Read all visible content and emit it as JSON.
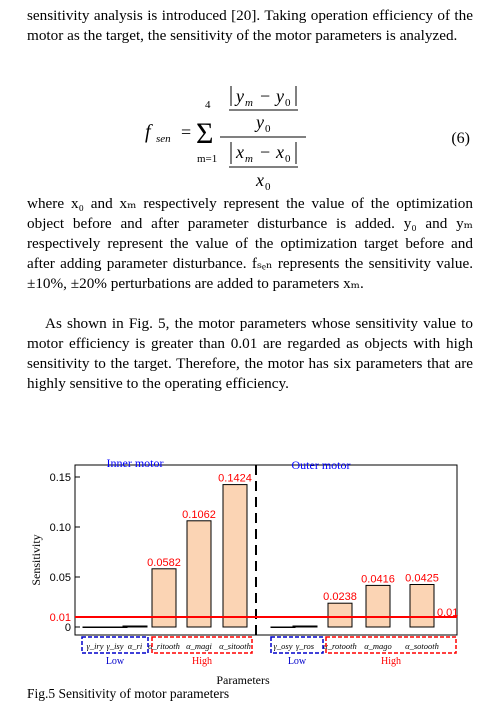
{
  "paragraphs": {
    "p1": "sensitivity analysis is introduced [20]. Taking operation efficiency of the motor as the target, the sensitivity of the motor parameters is analyzed.",
    "p2": "where x₀ and xₘ respectively represent the value of the optimization object before and after parameter disturbance is added. y₀ and yₘ respectively represent the value of the optimization target before and after adding parameter disturbance. fₛₑₙ represents the sensitivity value. ±10%, ±20% perturbations are added to parameters xₘ.",
    "p3": "As shown in Fig. 5, the motor parameters whose sensitivity value to motor efficiency is greater than 0.01 are regarded as objects with high sensitivity to the target. Therefore, the motor has six parameters that are highly sensitive to the operating efficiency."
  },
  "equation": {
    "lhs": "f",
    "lhs_sub": "sen",
    "sum_upper": "4",
    "sum_lower": "m=1",
    "num_top": "y",
    "num_top_sub": "m",
    "y0": "y",
    "x0": "x",
    "sub0": "0",
    "subm": "m",
    "number": "(6)"
  },
  "figure": {
    "caption": "Fig.5 Sensitivity of motor parameters",
    "inner_label": "Inner motor",
    "outer_label": "Outer motor",
    "low_label": "Low",
    "high_label": "High",
    "threshold_label": "0.01"
  },
  "chart_data": {
    "type": "bar",
    "ylabel": "Sensitivity",
    "xlabel": "Parameters",
    "ylim": [
      0,
      0.155
    ],
    "yticks": [
      "0",
      "0.01",
      "0.05",
      "0.10",
      "0.15"
    ],
    "threshold": 0.01,
    "categories": [
      "γ_iry",
      "γ_isy",
      "α_ri",
      "α_ritooth",
      "α_magi",
      "α_sitooth",
      "γ_osy",
      "γ_ros",
      "α_rotooth",
      "α_mago",
      "α_sotooth"
    ],
    "values": [
      0,
      0,
      0.001,
      0.0582,
      0.1062,
      0.1424,
      0,
      0.001,
      0.0238,
      0.0416,
      0.0425
    ],
    "value_labels": [
      "",
      "",
      "",
      "0.0582",
      "0.1062",
      "0.1424",
      "",
      "",
      "0.0238",
      "0.0416",
      "0.0425"
    ],
    "colors": {
      "bar": "#fbd4b4",
      "threshold": "#ff0000",
      "label": "#ff0000",
      "low_box": "#0000cc",
      "high_box": "#ff0000",
      "axis_text": "#0000ff"
    }
  }
}
